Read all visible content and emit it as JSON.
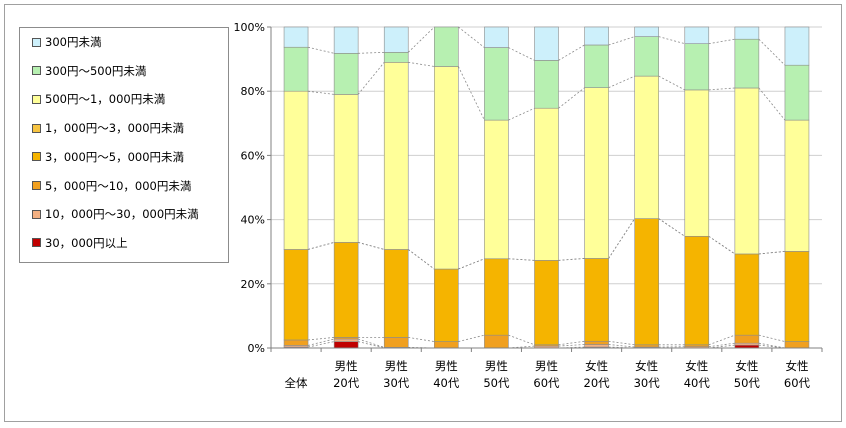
{
  "chart_data": {
    "type": "bar",
    "stacked": true,
    "percent": true,
    "categories": [
      [
        "全体"
      ],
      [
        "男性",
        "20代"
      ],
      [
        "男性",
        "30代"
      ],
      [
        "男性",
        "40代"
      ],
      [
        "男性",
        "50代"
      ],
      [
        "男性",
        "60代"
      ],
      [
        "女性",
        "20代"
      ],
      [
        "女性",
        "30代"
      ],
      [
        "女性",
        "40代"
      ],
      [
        "女性",
        "50代"
      ],
      [
        "女性",
        "60代"
      ]
    ],
    "yticks": [
      "0%",
      "20%",
      "40%",
      "60%",
      "80%",
      "100%"
    ],
    "ylim": [
      0,
      100
    ],
    "grid": true,
    "legend_position": "left",
    "series": [
      {
        "name": "30，000円以上",
        "color": "#c00000",
        "values": [
          0.3,
          2.0,
          0.0,
          0.0,
          0.0,
          0.0,
          0.3,
          0.0,
          0.0,
          0.9,
          0.0
        ]
      },
      {
        "name": "10，000円～30，000円未満",
        "color": "#f4b183",
        "values": [
          0.5,
          0.8,
          0.2,
          0.0,
          0.0,
          0.6,
          0.8,
          0.3,
          0.4,
          0.6,
          0.0
        ]
      },
      {
        "name": "5，000円～10，000円未満",
        "color": "#f0a020",
        "values": [
          1.7,
          0.5,
          3.1,
          2.0,
          4.0,
          0.4,
          1.0,
          0.7,
          0.6,
          2.5,
          2.0
        ]
      },
      {
        "name": "3，000円～5，000円未満",
        "color": "#f5b400",
        "values": [
          28.2,
          29.6,
          27.4,
          22.6,
          23.8,
          26.3,
          25.8,
          39.3,
          33.8,
          25.3,
          28.1
        ]
      },
      {
        "name": "1，000円～3，000円未満",
        "color": "#f7c441",
        "values": [
          0.0,
          0.0,
          0.0,
          0.0,
          0.0,
          0.0,
          0.0,
          0.0,
          0.0,
          0.0,
          0.0
        ]
      },
      {
        "name": "500円～1，000円未満",
        "color": "#ffff99",
        "values": [
          49.3,
          46.1,
          58.3,
          63.1,
          43.2,
          47.4,
          53.2,
          44.4,
          45.6,
          51.7,
          40.9
        ]
      },
      {
        "name": "300円～500円未満",
        "color": "#b7f0b1",
        "values": [
          13.7,
          12.8,
          3.1,
          12.3,
          22.6,
          14.9,
          13.3,
          12.3,
          14.4,
          15.2,
          17.1
        ]
      },
      {
        "name": "300円未満",
        "color": "#cdf0fb",
        "values": [
          6.3,
          8.2,
          7.9,
          0.0,
          6.4,
          10.4,
          5.6,
          3.0,
          5.2,
          3.8,
          11.9
        ]
      }
    ]
  }
}
